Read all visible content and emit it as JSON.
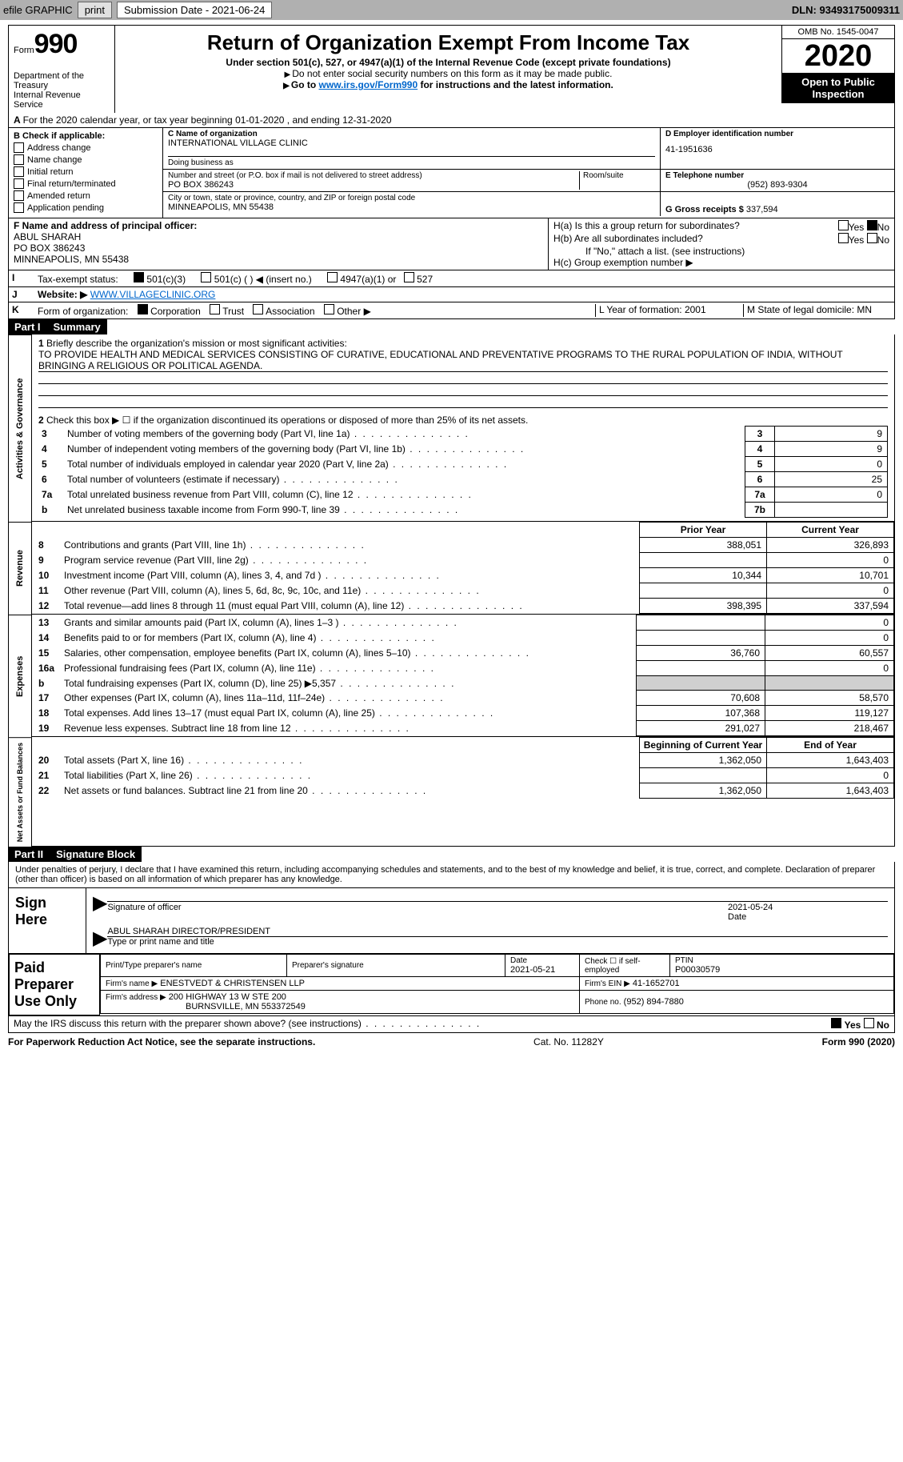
{
  "topbar": {
    "efile": "efile GRAPHIC",
    "print": "print",
    "submission": "Submission Date - 2021-06-24",
    "dln": "DLN: 93493175009311"
  },
  "header": {
    "form_label": "Form",
    "form_num": "990",
    "title": "Return of Organization Exempt From Income Tax",
    "subtitle": "Under section 501(c), 527, or 4947(a)(1) of the Internal Revenue Code (except private foundations)",
    "note1": "Do not enter social security numbers on this form as it may be made public.",
    "note2_pre": "Go to ",
    "note2_link": "www.irs.gov/Form990",
    "note2_post": " for instructions and the latest information.",
    "dept": "Department of the Treasury\nInternal Revenue Service",
    "omb": "OMB No. 1545-0047",
    "year": "2020",
    "open": "Open to Public Inspection"
  },
  "line_a": "For the 2020 calendar year, or tax year beginning 01-01-2020    , and ending 12-31-2020",
  "box_b": {
    "title": "B Check if applicable:",
    "items": [
      "Address change",
      "Name change",
      "Initial return",
      "Final return/terminated",
      "Amended return",
      "Application pending"
    ]
  },
  "box_c": {
    "label": "C Name of organization",
    "name": "INTERNATIONAL VILLAGE CLINIC",
    "dba_label": "Doing business as",
    "addr_label": "Number and street (or P.O. box if mail is not delivered to street address)",
    "room_label": "Room/suite",
    "addr": "PO BOX 386243",
    "city_label": "City or town, state or province, country, and ZIP or foreign postal code",
    "city": "MINNEAPOLIS, MN  55438"
  },
  "box_d": {
    "label": "D Employer identification number",
    "ein": "41-1951636"
  },
  "box_e": {
    "label": "E Telephone number",
    "phone": "(952) 893-9304"
  },
  "box_g": {
    "label": "G Gross receipts $",
    "val": "337,594"
  },
  "box_f": {
    "label": "F  Name and address of principal officer:",
    "name": "ABUL SHARAH",
    "addr1": "PO BOX 386243",
    "addr2": "MINNEAPOLIS, MN  55438"
  },
  "box_h": {
    "a_label": "H(a)  Is this a group return for subordinates?",
    "b_label": "H(b)  Are all subordinates included?",
    "b_note": "If \"No,\" attach a list. (see instructions)",
    "c_label": "H(c)  Group exemption number ▶",
    "yes": "Yes",
    "no": "No"
  },
  "row_i": {
    "lbl": "I",
    "text": "Tax-exempt status:",
    "opts": [
      "501(c)(3)",
      "501(c) (  ) ◀ (insert no.)",
      "4947(a)(1) or",
      "527"
    ]
  },
  "row_j": {
    "lbl": "J",
    "text": "Website: ▶",
    "val": "WWW.VILLAGECLINIC.ORG"
  },
  "row_k": {
    "lbl": "K",
    "text": "Form of organization:",
    "opts": [
      "Corporation",
      "Trust",
      "Association",
      "Other ▶"
    ]
  },
  "row_lm": {
    "l": "L Year of formation: 2001",
    "m": "M State of legal domicile: MN"
  },
  "part1": {
    "hdr": "Part I",
    "title": "Summary",
    "tab_gov": "Activities & Governance",
    "tab_rev": "Revenue",
    "tab_exp": "Expenses",
    "tab_net": "Net Assets or Fund Balances",
    "q1_label": "Briefly describe the organization's mission or most significant activities:",
    "q1_text": "TO PROVIDE HEALTH AND MEDICAL SERVICES CONSISTING OF CURATIVE, EDUCATIONAL AND PREVENTATIVE PROGRAMS TO THE RURAL POPULATION OF INDIA, WITHOUT BRINGING A RELIGIOUS OR POLITICAL AGENDA.",
    "q2": "Check this box ▶ ☐  if the organization discontinued its operations or disposed of more than 25% of its net assets.",
    "rows_gov": [
      {
        "n": "3",
        "d": "Number of voting members of the governing body (Part VI, line 1a)",
        "k": "3",
        "v": "9"
      },
      {
        "n": "4",
        "d": "Number of independent voting members of the governing body (Part VI, line 1b)",
        "k": "4",
        "v": "9"
      },
      {
        "n": "5",
        "d": "Total number of individuals employed in calendar year 2020 (Part V, line 2a)",
        "k": "5",
        "v": "0"
      },
      {
        "n": "6",
        "d": "Total number of volunteers (estimate if necessary)",
        "k": "6",
        "v": "25"
      },
      {
        "n": "7a",
        "d": "Total unrelated business revenue from Part VIII, column (C), line 12",
        "k": "7a",
        "v": "0"
      },
      {
        "n": "b",
        "d": "Net unrelated business taxable income from Form 990-T, line 39",
        "k": "7b",
        "v": ""
      }
    ],
    "col_prior": "Prior Year",
    "col_curr": "Current Year",
    "rows_rev": [
      {
        "n": "8",
        "d": "Contributions and grants (Part VIII, line 1h)",
        "p": "388,051",
        "c": "326,893"
      },
      {
        "n": "9",
        "d": "Program service revenue (Part VIII, line 2g)",
        "p": "",
        "c": "0"
      },
      {
        "n": "10",
        "d": "Investment income (Part VIII, column (A), lines 3, 4, and 7d )",
        "p": "10,344",
        "c": "10,701"
      },
      {
        "n": "11",
        "d": "Other revenue (Part VIII, column (A), lines 5, 6d, 8c, 9c, 10c, and 11e)",
        "p": "",
        "c": "0"
      },
      {
        "n": "12",
        "d": "Total revenue—add lines 8 through 11 (must equal Part VIII, column (A), line 12)",
        "p": "398,395",
        "c": "337,594"
      }
    ],
    "rows_exp": [
      {
        "n": "13",
        "d": "Grants and similar amounts paid (Part IX, column (A), lines 1–3 )",
        "p": "",
        "c": "0"
      },
      {
        "n": "14",
        "d": "Benefits paid to or for members (Part IX, column (A), line 4)",
        "p": "",
        "c": "0"
      },
      {
        "n": "15",
        "d": "Salaries, other compensation, employee benefits (Part IX, column (A), lines 5–10)",
        "p": "36,760",
        "c": "60,557"
      },
      {
        "n": "16a",
        "d": "Professional fundraising fees (Part IX, column (A), line 11e)",
        "p": "",
        "c": "0"
      },
      {
        "n": "b",
        "d": "Total fundraising expenses (Part IX, column (D), line 25) ▶5,357",
        "p": "GREY",
        "c": "GREY"
      },
      {
        "n": "17",
        "d": "Other expenses (Part IX, column (A), lines 11a–11d, 11f–24e)",
        "p": "70,608",
        "c": "58,570"
      },
      {
        "n": "18",
        "d": "Total expenses. Add lines 13–17 (must equal Part IX, column (A), line 25)",
        "p": "107,368",
        "c": "119,127"
      },
      {
        "n": "19",
        "d": "Revenue less expenses. Subtract line 18 from line 12",
        "p": "291,027",
        "c": "218,467"
      }
    ],
    "col_beg": "Beginning of Current Year",
    "col_end": "End of Year",
    "rows_net": [
      {
        "n": "20",
        "d": "Total assets (Part X, line 16)",
        "p": "1,362,050",
        "c": "1,643,403"
      },
      {
        "n": "21",
        "d": "Total liabilities (Part X, line 26)",
        "p": "",
        "c": "0"
      },
      {
        "n": "22",
        "d": "Net assets or fund balances. Subtract line 21 from line 20",
        "p": "1,362,050",
        "c": "1,643,403"
      }
    ]
  },
  "part2": {
    "hdr": "Part II",
    "title": "Signature Block",
    "decl": "Under penalties of perjury, I declare that I have examined this return, including accompanying schedules and statements, and to the best of my knowledge and belief, it is true, correct, and complete. Declaration of preparer (other than officer) is based on all information of which preparer has any knowledge.",
    "sign_here": "Sign Here",
    "sig_officer": "Signature of officer",
    "sig_date_val": "2021-05-24",
    "sig_date": "Date",
    "officer_name": "ABUL SHARAH  DIRECTOR/PRESIDENT",
    "type_name": "Type or print name and title",
    "paid": "Paid Preparer Use Only",
    "prep_name_lbl": "Print/Type preparer's name",
    "prep_sig_lbl": "Preparer's signature",
    "prep_date_lbl": "Date",
    "prep_date": "2021-05-21",
    "prep_self": "Check ☐ if self-employed",
    "ptin_lbl": "PTIN",
    "ptin": "P00030579",
    "firm_name_lbl": "Firm's name   ▶",
    "firm_name": "ENESTVEDT & CHRISTENSEN LLP",
    "firm_ein_lbl": "Firm's EIN ▶",
    "firm_ein": "41-1652701",
    "firm_addr_lbl": "Firm's address ▶",
    "firm_addr1": "200 HIGHWAY 13 W STE 200",
    "firm_addr2": "BURNSVILLE, MN  553372549",
    "firm_phone_lbl": "Phone no.",
    "firm_phone": "(952) 894-7880",
    "discuss": "May the IRS discuss this return with the preparer shown above? (see instructions)",
    "yes": "Yes",
    "no": "No"
  },
  "footer": {
    "left": "For Paperwork Reduction Act Notice, see the separate instructions.",
    "mid": "Cat. No. 11282Y",
    "right": "Form 990 (2020)"
  }
}
